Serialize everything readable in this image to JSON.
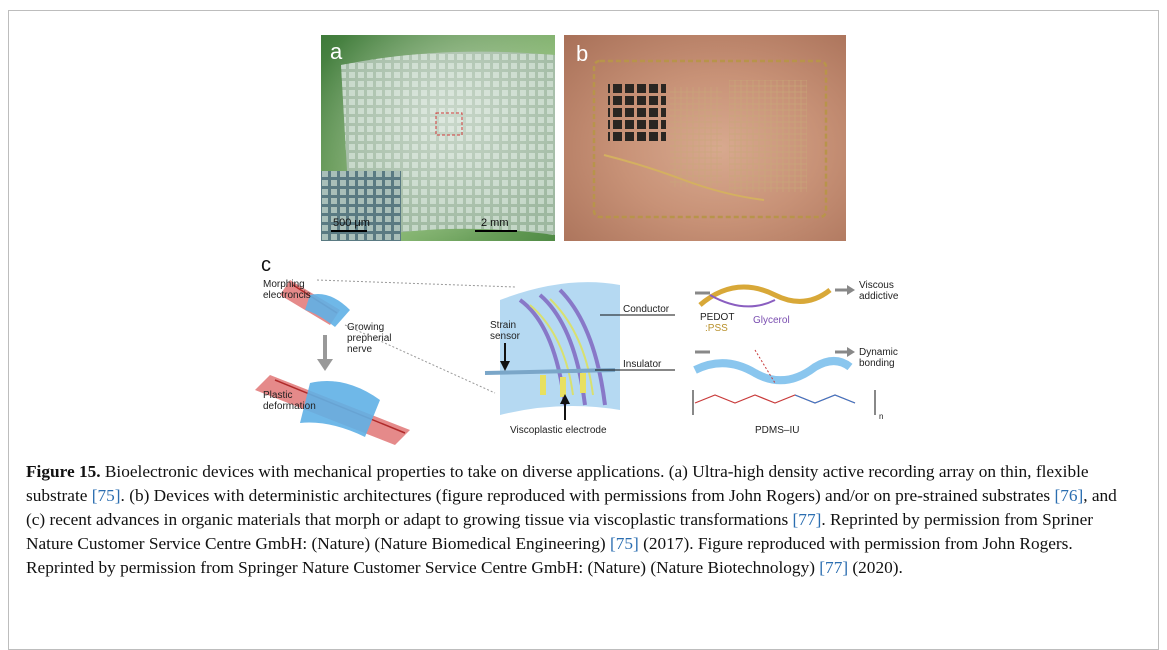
{
  "figure": {
    "panels": {
      "a": {
        "label": "a",
        "inset_scale_bar": "500 μm",
        "main_scale_bar": "2 mm"
      },
      "b": {
        "label": "b"
      },
      "c": {
        "label": "c",
        "labels": {
          "morphing": "Morphing",
          "electroncis": "electroncis",
          "growing": "Growing",
          "prepherial": "prepherial",
          "nerve": "nerve",
          "plastic": "Plastic",
          "deformation": "deformation",
          "strain": "Strain",
          "sensor": "sensor",
          "conductor": "Conductor",
          "insulator": "Insulator",
          "viscoplastic_electrode": "Viscoplastic electrode",
          "pedot": "PEDOT",
          "pss": ":PSS",
          "glycerol": "Glycerol",
          "viscous": "Viscous",
          "addictive": "addictive",
          "dynamic": "Dynamic",
          "bonding": "bonding",
          "pdms_iu": "PDMS–IU",
          "n_subscript": "n"
        }
      }
    },
    "caption": {
      "label": "Figure 15.",
      "t1": " Bioelectronic devices with mechanical properties to take on diverse applications. (a) Ultra-high density active recording array on thin, flexible substrate ",
      "r75a": "[75]",
      "t2": ". (b) Devices with deterministic architectures (figure reproduced with permissions from John Rogers) and/or on pre-strained substrates ",
      "r76": "[76]",
      "t3": ", and (c) recent advances in organic materials that morph or adapt to growing tissue via viscoplastic transformations ",
      "r77a": "[77]",
      "t4": ". Reprinted by permission from Spriner Nature Customer Service Centre GmbH: (Nature) (Nature Biomedical Engineering) ",
      "r75b": "[75]",
      "t5": " (2017). Figure reproduced with permission from John Rogers. Reprinted by permission from Springer Nature Customer Service Centre GmbH: (Nature) (Nature Biotechnology) ",
      "r77b": "[77]",
      "t6": " (2020)."
    }
  }
}
